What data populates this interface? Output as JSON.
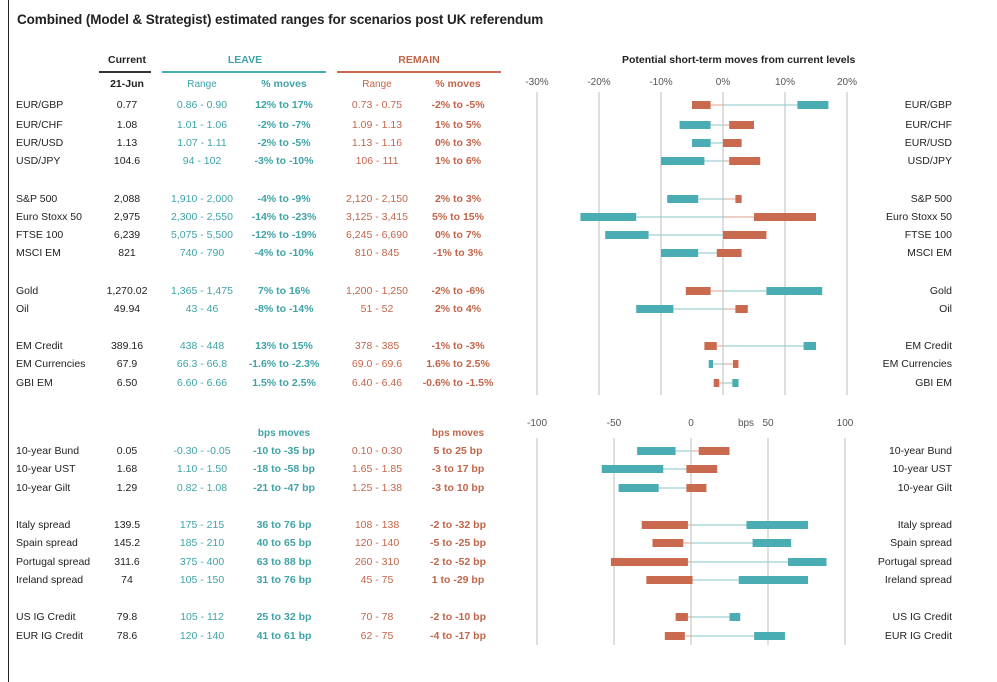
{
  "title": "Combined (Model & Strategist) estimated ranges for scenarios post UK referendum",
  "headers": {
    "current": "Current",
    "date": "21-Jun",
    "leave": "LEAVE",
    "remain": "REMAIN",
    "range": "Range",
    "pct_moves": "% moves",
    "bps_moves": "bps moves"
  },
  "colors": {
    "leave": "#4aadb3",
    "remain": "#c96a4f",
    "whisker_leave": "#9fd0d3",
    "whisker_remain": "#e3b2a3"
  },
  "rows_pct": [
    {
      "label": "EUR/GBP",
      "current": "0.77",
      "leave_range": "0.86 - 0.90",
      "leave_move": "12% to 17%",
      "remain_range": "0.73 - 0.75",
      "remain_move": "-2% to -5%"
    },
    {
      "label": "EUR/CHF",
      "current": "1.08",
      "leave_range": "1.01 - 1.06",
      "leave_move": "-2% to -7%",
      "remain_range": "1.09 - 1.13",
      "remain_move": "1% to 5%"
    },
    {
      "label": "EUR/USD",
      "current": "1.13",
      "leave_range": "1.07 - 1.11",
      "leave_move": "-2% to -5%",
      "remain_range": "1.13 - 1.16",
      "remain_move": "0% to 3%"
    },
    {
      "label": "USD/JPY",
      "current": "104.6",
      "leave_range": "94 - 102",
      "leave_move": "-3% to -10%",
      "remain_range": "106 - 111",
      "remain_move": "1% to 6%"
    },
    {
      "label": "S&P 500",
      "current": "2,088",
      "leave_range": "1,910 - 2,000",
      "leave_move": "-4% to -9%",
      "remain_range": "2,120 - 2,150",
      "remain_move": "2% to 3%"
    },
    {
      "label": "Euro Stoxx 50",
      "current": "2,975",
      "leave_range": "2,300 - 2,550",
      "leave_move": "-14% to -23%",
      "remain_range": "3,125 - 3,415",
      "remain_move": "5% to 15%"
    },
    {
      "label": "FTSE 100",
      "current": "6,239",
      "leave_range": "5,075 - 5,500",
      "leave_move": "-12% to -19%",
      "remain_range": "6,245 - 6,690",
      "remain_move": "0% to 7%"
    },
    {
      "label": "MSCI EM",
      "current": "821",
      "leave_range": "740 - 790",
      "leave_move": "-4% to -10%",
      "remain_range": "810 - 845",
      "remain_move": "-1% to 3%"
    },
    {
      "label": "Gold",
      "current": "1,270.02",
      "leave_range": "1,365 - 1,475",
      "leave_move": "7% to 16%",
      "remain_range": "1,200 - 1,250",
      "remain_move": "-2% to -6%"
    },
    {
      "label": "Oil",
      "current": "49.94",
      "leave_range": "43 - 46",
      "leave_move": "-8% to -14%",
      "remain_range": "51 - 52",
      "remain_move": "2% to 4%"
    },
    {
      "label": "EM Credit",
      "current": "389.16",
      "leave_range": "438 - 448",
      "leave_move": "13% to 15%",
      "remain_range": "378 - 385",
      "remain_move": "-1% to -3%"
    },
    {
      "label": "EM Currencies",
      "current": "67.9",
      "leave_range": "66.3 - 66.8",
      "leave_move": "-1.6% to -2.3%",
      "remain_range": "69.0 - 69.6",
      "remain_move": "1.6% to 2.5%"
    },
    {
      "label": "GBI EM",
      "current": "6.50",
      "leave_range": "6.60 - 6.66",
      "leave_move": "1.5% to 2.5%",
      "remain_range": "6.40 - 6.46",
      "remain_move": "-0.6% to -1.5%"
    }
  ],
  "rows_bps": [
    {
      "label": "10-year Bund",
      "current": "0.05",
      "leave_range": "-0.30 - -0.05",
      "leave_move": "-10 to -35 bp",
      "remain_range": "0.10 - 0.30",
      "remain_move": "5 to 25 bp"
    },
    {
      "label": "10-year UST",
      "current": "1.68",
      "leave_range": "1.10 - 1.50",
      "leave_move": "-18 to -58 bp",
      "remain_range": "1.65 - 1.85",
      "remain_move": "-3 to 17 bp"
    },
    {
      "label": "10-year Gilt",
      "current": "1.29",
      "leave_range": "0.82 - 1.08",
      "leave_move": "-21 to -47 bp",
      "remain_range": "1.25 - 1.38",
      "remain_move": "-3 to 10 bp"
    },
    {
      "label": "Italy spread",
      "current": "139.5",
      "leave_range": "175 - 215",
      "leave_move": "36 to 76 bp",
      "remain_range": "108 - 138",
      "remain_move": "-2 to -32 bp"
    },
    {
      "label": "Spain spread",
      "current": "145.2",
      "leave_range": "185 - 210",
      "leave_move": "40 to 65 bp",
      "remain_range": "120 - 140",
      "remain_move": "-5 to -25 bp"
    },
    {
      "label": "Portugal spread",
      "current": "311.6",
      "leave_range": "375 - 400",
      "leave_move": "63 to 88 bp",
      "remain_range": "260 - 310",
      "remain_move": "-2 to -52 bp"
    },
    {
      "label": "Ireland spread",
      "current": "74",
      "leave_range": "105 - 150",
      "leave_move": "31 to 76 bp",
      "remain_range": "45 - 75",
      "remain_move": "1 to -29 bp"
    },
    {
      "label": "US IG Credit",
      "current": "79.8",
      "leave_range": "105 - 112",
      "leave_move": "25 to 32 bp",
      "remain_range": "70 - 78",
      "remain_move": "-2 to -10 bp"
    },
    {
      "label": "EUR IG Credit",
      "current": "78.6",
      "leave_range": "120 - 140",
      "leave_move": "41 to 61 bp",
      "remain_range": "62 - 75",
      "remain_move": "-4 to -17 bp"
    }
  ],
  "chart_data": [
    {
      "type": "range-bar",
      "title": "Potential short-term moves from current levels",
      "unit": "%",
      "xlim": [
        -30,
        20
      ],
      "ticks": [
        -30,
        -20,
        -10,
        0,
        10,
        20
      ],
      "tick_labels": [
        "-30%",
        "-20%",
        "-10%",
        "0%",
        "10%",
        "20%"
      ],
      "categories": [
        "EUR/GBP",
        "EUR/CHF",
        "EUR/USD",
        "USD/JPY",
        "S&P 500",
        "Euro Stoxx 50",
        "FTSE 100",
        "MSCI EM",
        "Gold",
        "Oil",
        "EM Credit",
        "EM Currencies",
        "GBI EM"
      ],
      "series": [
        {
          "name": "LEAVE",
          "ranges": [
            [
              12,
              17
            ],
            [
              -2,
              -7
            ],
            [
              -2,
              -5
            ],
            [
              -3,
              -10
            ],
            [
              -4,
              -9
            ],
            [
              -14,
              -23
            ],
            [
              -12,
              -19
            ],
            [
              -4,
              -10
            ],
            [
              7,
              16
            ],
            [
              -8,
              -14
            ],
            [
              13,
              15
            ],
            [
              -1.6,
              -2.3
            ],
            [
              1.5,
              2.5
            ]
          ]
        },
        {
          "name": "REMAIN",
          "ranges": [
            [
              -2,
              -5
            ],
            [
              1,
              5
            ],
            [
              0,
              3
            ],
            [
              1,
              6
            ],
            [
              2,
              3
            ],
            [
              5,
              15
            ],
            [
              0,
              7
            ],
            [
              -1,
              3
            ],
            [
              -2,
              -6
            ],
            [
              2,
              4
            ],
            [
              -1,
              -3
            ],
            [
              1.6,
              2.5
            ],
            [
              -0.6,
              -1.5
            ]
          ]
        }
      ]
    },
    {
      "type": "range-bar",
      "title": "",
      "unit": "bps",
      "xlabel": "bps",
      "xlim": [
        -100,
        100
      ],
      "ticks": [
        -100,
        -50,
        0,
        50,
        100
      ],
      "tick_labels": [
        "-100",
        "-50",
        "0",
        "50",
        "100"
      ],
      "categories": [
        "10-year Bund",
        "10-year UST",
        "10-year Gilt",
        "Italy spread",
        "Spain spread",
        "Portugal spread",
        "Ireland spread",
        "US IG Credit",
        "EUR IG Credit"
      ],
      "series": [
        {
          "name": "LEAVE",
          "ranges": [
            [
              -10,
              -35
            ],
            [
              -18,
              -58
            ],
            [
              -21,
              -47
            ],
            [
              36,
              76
            ],
            [
              40,
              65
            ],
            [
              63,
              88
            ],
            [
              31,
              76
            ],
            [
              25,
              32
            ],
            [
              41,
              61
            ]
          ]
        },
        {
          "name": "REMAIN",
          "ranges": [
            [
              5,
              25
            ],
            [
              -3,
              17
            ],
            [
              -3,
              10
            ],
            [
              -2,
              -32
            ],
            [
              -5,
              -25
            ],
            [
              -2,
              -52
            ],
            [
              1,
              -29
            ],
            [
              -2,
              -10
            ],
            [
              -4,
              -17
            ]
          ]
        }
      ]
    }
  ]
}
